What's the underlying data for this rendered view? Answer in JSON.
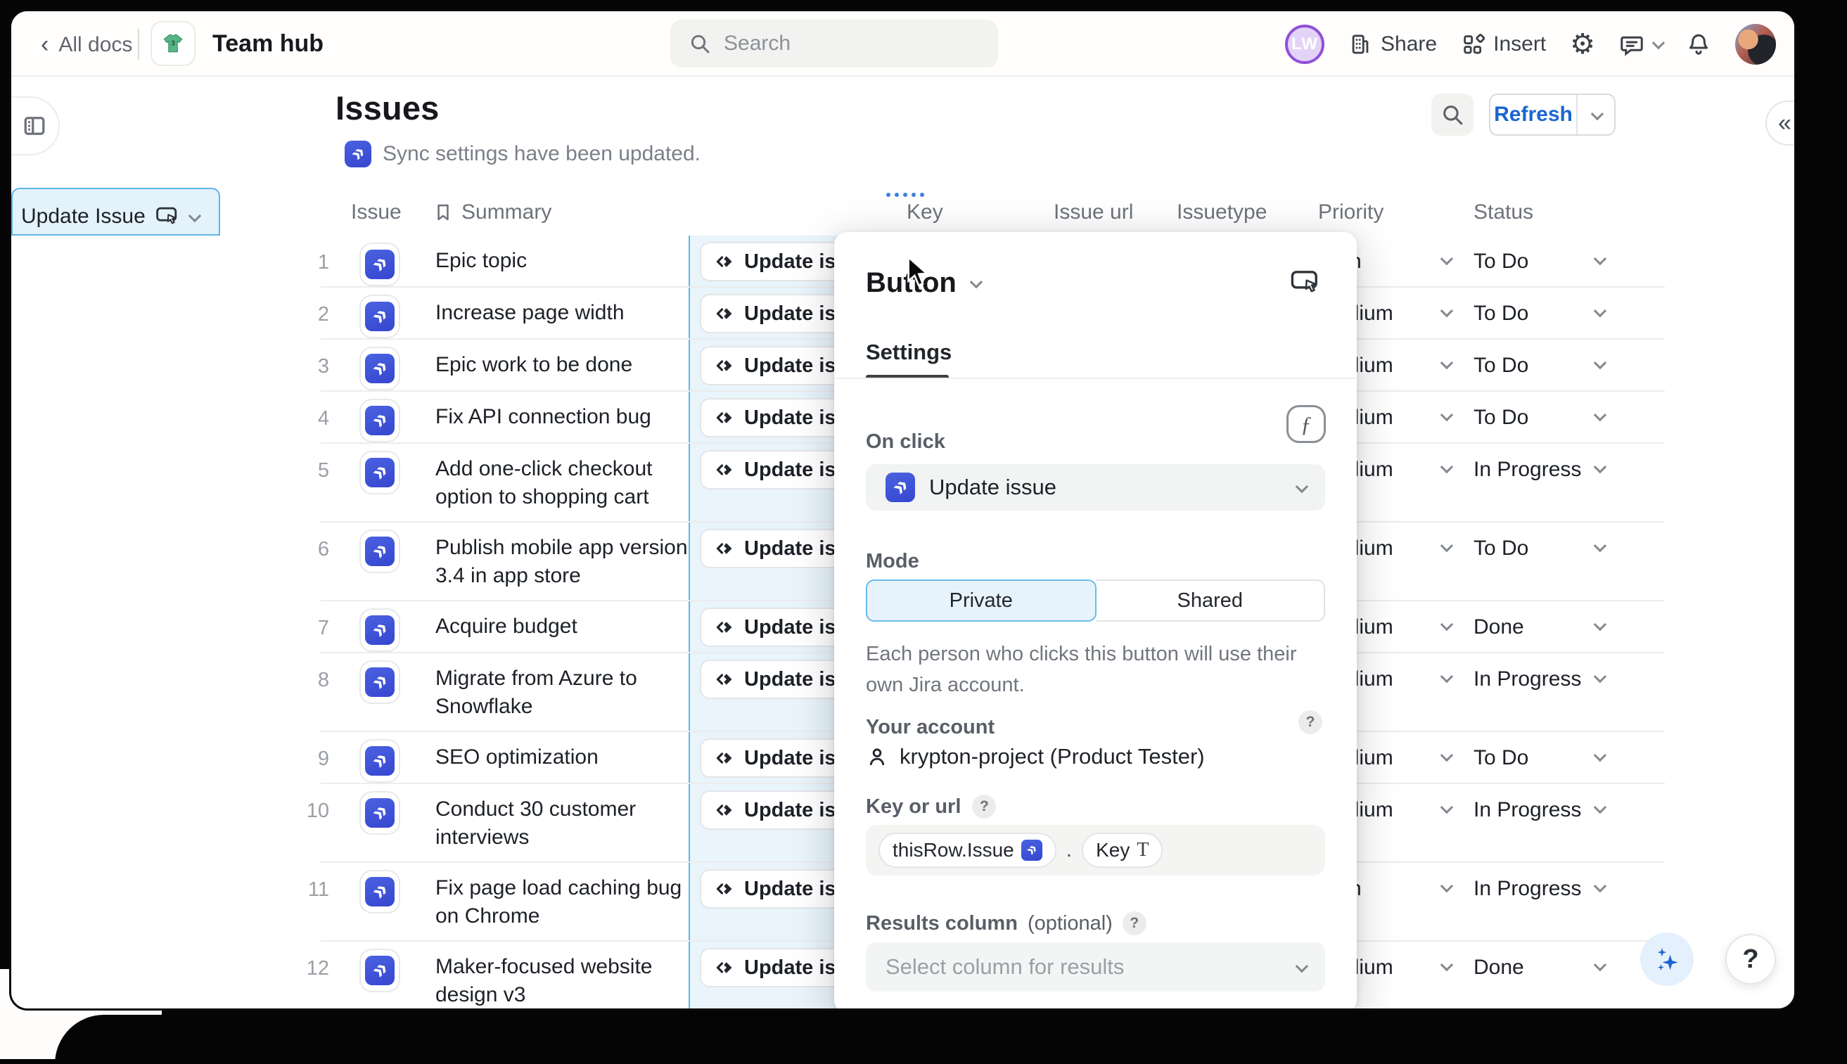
{
  "topbar": {
    "back_label": "All docs",
    "doc_title": "Team hub",
    "search_placeholder": "Search",
    "avatar_initials": "LW",
    "share_label": "Share",
    "insert_label": "Insert"
  },
  "page": {
    "title": "Issues",
    "sync_banner": "Sync settings have been updated.",
    "refresh_label": "Refresh",
    "collapse_glyph": "«"
  },
  "table": {
    "columns": [
      "Issue",
      "Summary",
      "Update Issue",
      "Key",
      "Issue url",
      "Issuetype",
      "Priority",
      "Status"
    ],
    "selected_column": "Update Issue",
    "row_button_label": "Update issue",
    "rows": [
      {
        "num": "1",
        "summary": "Epic topic",
        "priority": "High",
        "status": "To Do"
      },
      {
        "num": "2",
        "summary": "Increase page width",
        "priority": "Medium",
        "status": "To Do"
      },
      {
        "num": "3",
        "summary": "Epic work to be done",
        "priority": "Medium",
        "status": "To Do"
      },
      {
        "num": "4",
        "summary": "Fix API connection bug",
        "priority": "Medium",
        "status": "To Do"
      },
      {
        "num": "5",
        "summary": "Add one-click checkout option to shopping cart",
        "priority": "Medium",
        "status": "In Progress"
      },
      {
        "num": "6",
        "summary": "Publish mobile app version 3.4 in app store",
        "priority": "Medium",
        "status": "To Do"
      },
      {
        "num": "7",
        "summary": "Acquire budget",
        "priority": "Medium",
        "status": "Done"
      },
      {
        "num": "8",
        "summary": "Migrate from Azure to Snowflake",
        "priority": "Medium",
        "status": "In Progress"
      },
      {
        "num": "9",
        "summary": "SEO optimization",
        "priority": "Medium",
        "status": "To Do"
      },
      {
        "num": "10",
        "summary": "Conduct 30 customer interviews",
        "priority": "Medium",
        "status": "In Progress"
      },
      {
        "num": "11",
        "summary": "Fix page load caching bug on Chrome",
        "priority": "High",
        "status": "In Progress"
      },
      {
        "num": "12",
        "summary": "Maker-focused website design v3",
        "priority": "Medium",
        "status": "Done"
      }
    ],
    "tall_rows": [
      4,
      5,
      7,
      9,
      10,
      11
    ]
  },
  "popup": {
    "title": "Button",
    "tab": "Settings",
    "on_click_label": "On click",
    "formula_button_glyph": "ƒ",
    "action_value": "Update issue",
    "mode_label": "Mode",
    "mode_private": "Private",
    "mode_shared": "Shared",
    "mode_selected": "Private",
    "mode_description": "Each person who clicks this button will use their own Jira account.",
    "account_label": "Your account",
    "account_value": "krypton-project (Product Tester)",
    "key_label": "Key or url",
    "formula_chip_object": "thisRow.Issue",
    "formula_dot": ".",
    "formula_chip_field": "Key",
    "formula_chip_field_type": "T",
    "results_label": "Results column",
    "results_optional": "(optional)",
    "results_placeholder": "Select column for results",
    "help_glyph": "?"
  },
  "floating": {
    "help_glyph": "?"
  },
  "colors": {
    "accent_blue": "#1a66d0",
    "column_highlight_border": "#5eb5e9",
    "column_highlight_fill": "#e9f4fb",
    "jira_icon_blue": "#3d52d8",
    "segment_selected_fill": "#e7f3fc",
    "avatar_ring_purple": "#9050d8"
  }
}
